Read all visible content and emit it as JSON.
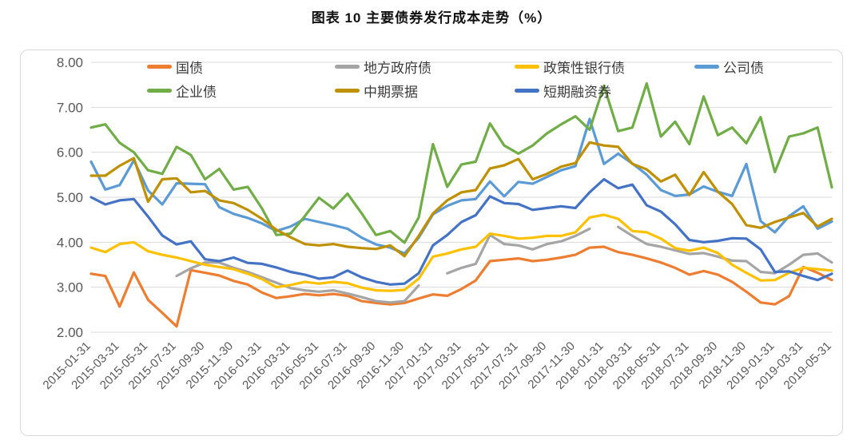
{
  "title": "图表 10 主要债券发行成本走势（%）",
  "chart_data": {
    "type": "line",
    "title": "图表 10 主要债券发行成本走势（%）",
    "xlabel": "",
    "ylabel": "",
    "ylim": [
      2.0,
      8.0
    ],
    "y_tick_step": 1.0,
    "y_tick_labels": [
      "8.00",
      "7.00",
      "6.00",
      "5.00",
      "4.00",
      "3.00",
      "2.00"
    ],
    "grid": true,
    "legend_position": "top",
    "categories": [
      "2015-01-31",
      "2015-02-28",
      "2015-03-31",
      "2015-04-30",
      "2015-05-31",
      "2015-06-30",
      "2015-07-31",
      "2015-08-31",
      "2015-09-30",
      "2015-10-31",
      "2015-11-30",
      "2015-12-31",
      "2016-01-31",
      "2016-02-29",
      "2016-03-31",
      "2016-04-30",
      "2016-05-31",
      "2016-06-30",
      "2016-07-31",
      "2016-08-31",
      "2016-09-30",
      "2016-10-31",
      "2016-11-30",
      "2016-12-31",
      "2017-01-31",
      "2017-02-28",
      "2017-03-31",
      "2017-04-30",
      "2017-05-31",
      "2017-06-30",
      "2017-07-31",
      "2017-08-31",
      "2017-09-30",
      "2017-10-31",
      "2017-11-30",
      "2017-12-31",
      "2018-01-31",
      "2018-02-28",
      "2018-03-31",
      "2018-04-30",
      "2018-05-31",
      "2018-06-30",
      "2018-07-31",
      "2018-08-31",
      "2018-09-30",
      "2018-10-31",
      "2018-11-30",
      "2018-12-31",
      "2019-01-31",
      "2019-02-28",
      "2019-03-31",
      "2019-04-30",
      "2019-05-31"
    ],
    "x_tick_labels": [
      "2015-01-31",
      "2015-03-31",
      "2015-05-31",
      "2015-07-31",
      "2015-09-30",
      "2015-11-30",
      "2016-01-31",
      "2016-03-31",
      "2016-05-31",
      "2016-07-31",
      "2016-09-30",
      "2016-11-30",
      "2017-01-31",
      "2017-03-31",
      "2017-05-31",
      "2017-07-31",
      "2017-09-30",
      "2017-11-30",
      "2018-01-31",
      "2018-03-31",
      "2018-05-31",
      "2018-07-31",
      "2018-09-30",
      "2018-11-30",
      "2019-01-31",
      "2019-03-31",
      "2019-05-31"
    ],
    "x_tick_every": 2,
    "series": [
      {
        "name": "国债",
        "color": "#ED7D31",
        "values": [
          3.3,
          3.25,
          2.57,
          3.33,
          2.72,
          2.43,
          2.13,
          3.38,
          3.32,
          3.26,
          3.14,
          3.06,
          2.88,
          2.76,
          2.8,
          2.85,
          2.82,
          2.85,
          2.81,
          2.69,
          2.65,
          2.62,
          2.65,
          2.75,
          2.84,
          2.81,
          2.96,
          3.15,
          3.58,
          3.61,
          3.64,
          3.58,
          3.61,
          3.66,
          3.72,
          3.88,
          3.9,
          3.78,
          3.72,
          3.64,
          3.55,
          3.43,
          3.28,
          3.36,
          3.28,
          3.12,
          2.9,
          2.66,
          2.62,
          2.8,
          3.45,
          3.32,
          3.16
        ]
      },
      {
        "name": "地方政府债",
        "color": "#A5A5A5",
        "values": [
          null,
          null,
          null,
          null,
          null,
          null,
          3.25,
          3.42,
          3.55,
          3.55,
          3.43,
          3.34,
          3.22,
          3.1,
          2.98,
          2.93,
          2.9,
          2.93,
          2.86,
          2.78,
          2.69,
          2.66,
          2.69,
          3.04,
          null,
          3.31,
          3.43,
          3.52,
          4.16,
          3.96,
          3.93,
          3.84,
          3.96,
          4.02,
          4.14,
          4.3,
          null,
          4.34,
          4.14,
          3.96,
          3.9,
          3.82,
          3.74,
          3.76,
          3.68,
          3.59,
          3.58,
          3.34,
          3.31,
          3.5,
          3.72,
          3.75,
          3.55
        ]
      },
      {
        "name": "政策性银行债",
        "color": "#FFC000",
        "values": [
          3.88,
          3.78,
          3.96,
          4.0,
          3.8,
          3.72,
          3.66,
          3.58,
          3.5,
          3.45,
          3.4,
          3.3,
          3.18,
          3.0,
          3.05,
          3.12,
          3.08,
          3.12,
          3.09,
          2.99,
          2.93,
          2.92,
          2.94,
          3.19,
          3.68,
          3.75,
          3.84,
          3.9,
          4.19,
          4.14,
          4.08,
          4.1,
          4.14,
          4.14,
          4.22,
          4.55,
          4.61,
          4.52,
          4.25,
          4.22,
          4.08,
          3.87,
          3.81,
          3.88,
          3.76,
          3.5,
          3.32,
          3.15,
          3.16,
          3.32,
          3.43,
          3.4,
          3.37
        ]
      },
      {
        "name": "公司债",
        "color": "#5B9BD5",
        "values": [
          5.79,
          5.17,
          5.27,
          5.82,
          5.15,
          4.84,
          5.31,
          5.3,
          5.29,
          4.78,
          4.63,
          4.54,
          4.42,
          4.25,
          4.35,
          4.52,
          4.45,
          4.38,
          4.3,
          4.1,
          3.95,
          3.88,
          3.75,
          4.1,
          4.62,
          4.81,
          4.93,
          4.96,
          5.35,
          5.02,
          5.34,
          5.3,
          5.45,
          5.6,
          5.69,
          6.74,
          5.74,
          5.97,
          5.75,
          5.5,
          5.16,
          5.03,
          5.06,
          5.24,
          5.12,
          5.03,
          5.74,
          4.47,
          4.22,
          4.58,
          4.8,
          4.3,
          4.46
        ]
      },
      {
        "name": "企业债",
        "color": "#70AD47",
        "values": [
          6.55,
          6.62,
          6.21,
          6.0,
          5.6,
          5.52,
          6.12,
          5.94,
          5.4,
          5.63,
          5.17,
          5.23,
          4.75,
          4.16,
          4.19,
          4.58,
          4.99,
          4.75,
          5.08,
          4.64,
          4.16,
          4.25,
          3.99,
          4.55,
          6.18,
          5.23,
          5.73,
          5.79,
          6.64,
          6.15,
          5.97,
          6.15,
          6.42,
          6.62,
          6.8,
          6.5,
          7.48,
          6.47,
          6.55,
          7.53,
          6.35,
          6.68,
          6.18,
          7.24,
          6.38,
          6.55,
          6.2,
          6.78,
          5.56,
          6.35,
          6.42,
          6.55,
          5.22
        ]
      },
      {
        "name": "中期票据",
        "color": "#BF9000",
        "values": [
          5.48,
          5.48,
          5.7,
          5.87,
          4.9,
          5.4,
          5.42,
          5.11,
          5.14,
          4.93,
          4.87,
          4.72,
          4.52,
          4.28,
          4.11,
          3.96,
          3.93,
          3.96,
          3.9,
          3.87,
          3.85,
          3.93,
          3.69,
          4.14,
          4.64,
          4.93,
          5.11,
          5.16,
          5.64,
          5.71,
          5.85,
          5.4,
          5.52,
          5.68,
          5.76,
          6.22,
          6.15,
          6.12,
          5.74,
          5.62,
          5.35,
          5.5,
          5.05,
          5.56,
          5.12,
          4.85,
          4.38,
          4.32,
          4.45,
          4.55,
          4.65,
          4.35,
          4.52
        ]
      },
      {
        "name": "短期融资券",
        "color": "#4472C4",
        "values": [
          5.0,
          4.84,
          4.93,
          4.96,
          4.57,
          4.15,
          3.95,
          4.02,
          3.62,
          3.58,
          3.66,
          3.54,
          3.52,
          3.44,
          3.34,
          3.28,
          3.19,
          3.22,
          3.37,
          3.22,
          3.12,
          3.06,
          3.08,
          3.31,
          3.93,
          4.16,
          4.45,
          4.6,
          5.02,
          4.87,
          4.85,
          4.72,
          4.76,
          4.8,
          4.76,
          5.11,
          5.4,
          5.2,
          5.28,
          4.82,
          4.68,
          4.4,
          4.05,
          4.0,
          4.03,
          4.09,
          4.08,
          3.84,
          3.34,
          3.35,
          3.25,
          3.16,
          3.3
        ]
      }
    ]
  },
  "style": {
    "grid_color": "#d9d9d9",
    "axis_label_color": "#595959",
    "border_color": "#d9d9d9",
    "line_width": 3.2
  }
}
